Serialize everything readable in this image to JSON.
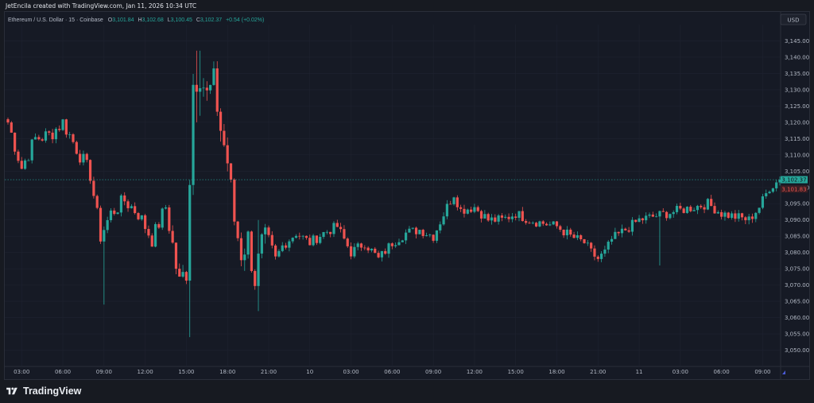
{
  "header": {
    "creator_line": "JetEncila created with TradingView.com, Jan 11, 2026 10:34 UTC"
  },
  "legend": {
    "symbol": "Ethereum / U.S. Dollar · 15 · Coinbase",
    "open_key": "O",
    "open_val": "3,101.84",
    "high_key": "H",
    "high_val": "3,102.68",
    "low_key": "L",
    "low_val": "3,100.45",
    "close_key": "C",
    "close_val": "3,102.37",
    "change": "+0.54 (+0.02%)"
  },
  "price_axis": {
    "currency": "USD",
    "last_price_label": "3,102.37",
    "secondary_price_label": "3,101.83"
  },
  "footer": {
    "brand": "TradingView"
  },
  "colors": {
    "background": "#161a25",
    "up": "#26a69a",
    "down": "#ef5350",
    "grid": "#1f2330",
    "text": "#b2b8c4"
  },
  "chart_data": {
    "type": "candlestick",
    "symbol": "ETHUSD",
    "interval": "15",
    "ylim": [
      3045,
      3150
    ],
    "y_ticks": [
      3050,
      3055,
      3060,
      3065,
      3070,
      3075,
      3080,
      3085,
      3090,
      3095,
      3100,
      3105,
      3110,
      3115,
      3120,
      3125,
      3130,
      3135,
      3140,
      3145
    ],
    "y_tick_labels": [
      "3,050.00",
      "3,055.00",
      "3,060.00",
      "3,065.00",
      "3,070.00",
      "3,075.00",
      "3,080.00",
      "3,085.00",
      "3,090.00",
      "3,095.00",
      "3,100.00",
      "3,105.00",
      "3,110.00",
      "3,115.00",
      "3,120.00",
      "3,125.00",
      "3,130.00",
      "3,135.00",
      "3,140.00",
      "3,145.00"
    ],
    "x_ticks": [
      {
        "label": "03:00",
        "i": 4
      },
      {
        "label": "06:00",
        "i": 16
      },
      {
        "label": "09:00",
        "i": 28
      },
      {
        "label": "12:00",
        "i": 40
      },
      {
        "label": "15:00",
        "i": 52
      },
      {
        "label": "18:00",
        "i": 64
      },
      {
        "label": "21:00",
        "i": 76
      },
      {
        "label": "10",
        "i": 88
      },
      {
        "label": "03:00",
        "i": 100
      },
      {
        "label": "06:00",
        "i": 112
      },
      {
        "label": "09:00",
        "i": 124
      },
      {
        "label": "12:00",
        "i": 136
      },
      {
        "label": "15:00",
        "i": 148
      },
      {
        "label": "18:00",
        "i": 160
      },
      {
        "label": "21:00",
        "i": 172
      },
      {
        "label": "11",
        "i": 184
      },
      {
        "label": "03:00",
        "i": 196
      },
      {
        "label": "06:00",
        "i": 208
      },
      {
        "label": "09:00",
        "i": 220
      }
    ],
    "last_price": 3102.37,
    "secondary_price": 3101.83,
    "anchors": [
      [
        0,
        3120
      ],
      [
        4,
        3106
      ],
      [
        8,
        3115
      ],
      [
        12,
        3116
      ],
      [
        16,
        3120
      ],
      [
        20,
        3112
      ],
      [
        24,
        3104
      ],
      [
        27,
        3085
      ],
      [
        30,
        3092
      ],
      [
        34,
        3096
      ],
      [
        38,
        3092
      ],
      [
        42,
        3084
      ],
      [
        46,
        3094
      ],
      [
        50,
        3070
      ],
      [
        52,
        3075
      ],
      [
        54,
        3132
      ],
      [
        56,
        3135
      ],
      [
        58,
        3128
      ],
      [
        60,
        3132
      ],
      [
        62,
        3118
      ],
      [
        64,
        3108
      ],
      [
        66,
        3090
      ],
      [
        68,
        3080
      ],
      [
        70,
        3084
      ],
      [
        72,
        3072
      ],
      [
        74,
        3082
      ],
      [
        76,
        3084
      ],
      [
        78,
        3078
      ],
      [
        80,
        3082
      ],
      [
        84,
        3086
      ],
      [
        88,
        3083
      ],
      [
        92,
        3086
      ],
      [
        96,
        3088
      ],
      [
        100,
        3080
      ],
      [
        104,
        3083
      ],
      [
        108,
        3078
      ],
      [
        112,
        3083
      ],
      [
        116,
        3086
      ],
      [
        120,
        3087
      ],
      [
        124,
        3085
      ],
      [
        128,
        3094
      ],
      [
        130,
        3098
      ],
      [
        132,
        3093
      ],
      [
        136,
        3094
      ],
      [
        140,
        3090
      ],
      [
        144,
        3090
      ],
      [
        148,
        3092
      ],
      [
        152,
        3090
      ],
      [
        156,
        3089
      ],
      [
        160,
        3088
      ],
      [
        164,
        3085
      ],
      [
        168,
        3083
      ],
      [
        170,
        3080
      ],
      [
        172,
        3078
      ],
      [
        174,
        3080
      ],
      [
        176,
        3084
      ],
      [
        180,
        3087
      ],
      [
        184,
        3090
      ],
      [
        188,
        3091
      ],
      [
        192,
        3092
      ],
      [
        196,
        3093
      ],
      [
        200,
        3094
      ],
      [
        204,
        3095
      ],
      [
        208,
        3092
      ],
      [
        212,
        3091
      ],
      [
        216,
        3090
      ],
      [
        219,
        3094
      ],
      [
        222,
        3100
      ],
      [
        225,
        3102.37
      ]
    ],
    "spikes": {
      "28": [
        3088,
        3064
      ],
      "53": [
        3096,
        3054
      ],
      "55": [
        3142,
        3120
      ],
      "56": [
        3142,
        3122
      ],
      "73": [
        3090,
        3062
      ],
      "190": [
        3087,
        3076
      ]
    }
  }
}
